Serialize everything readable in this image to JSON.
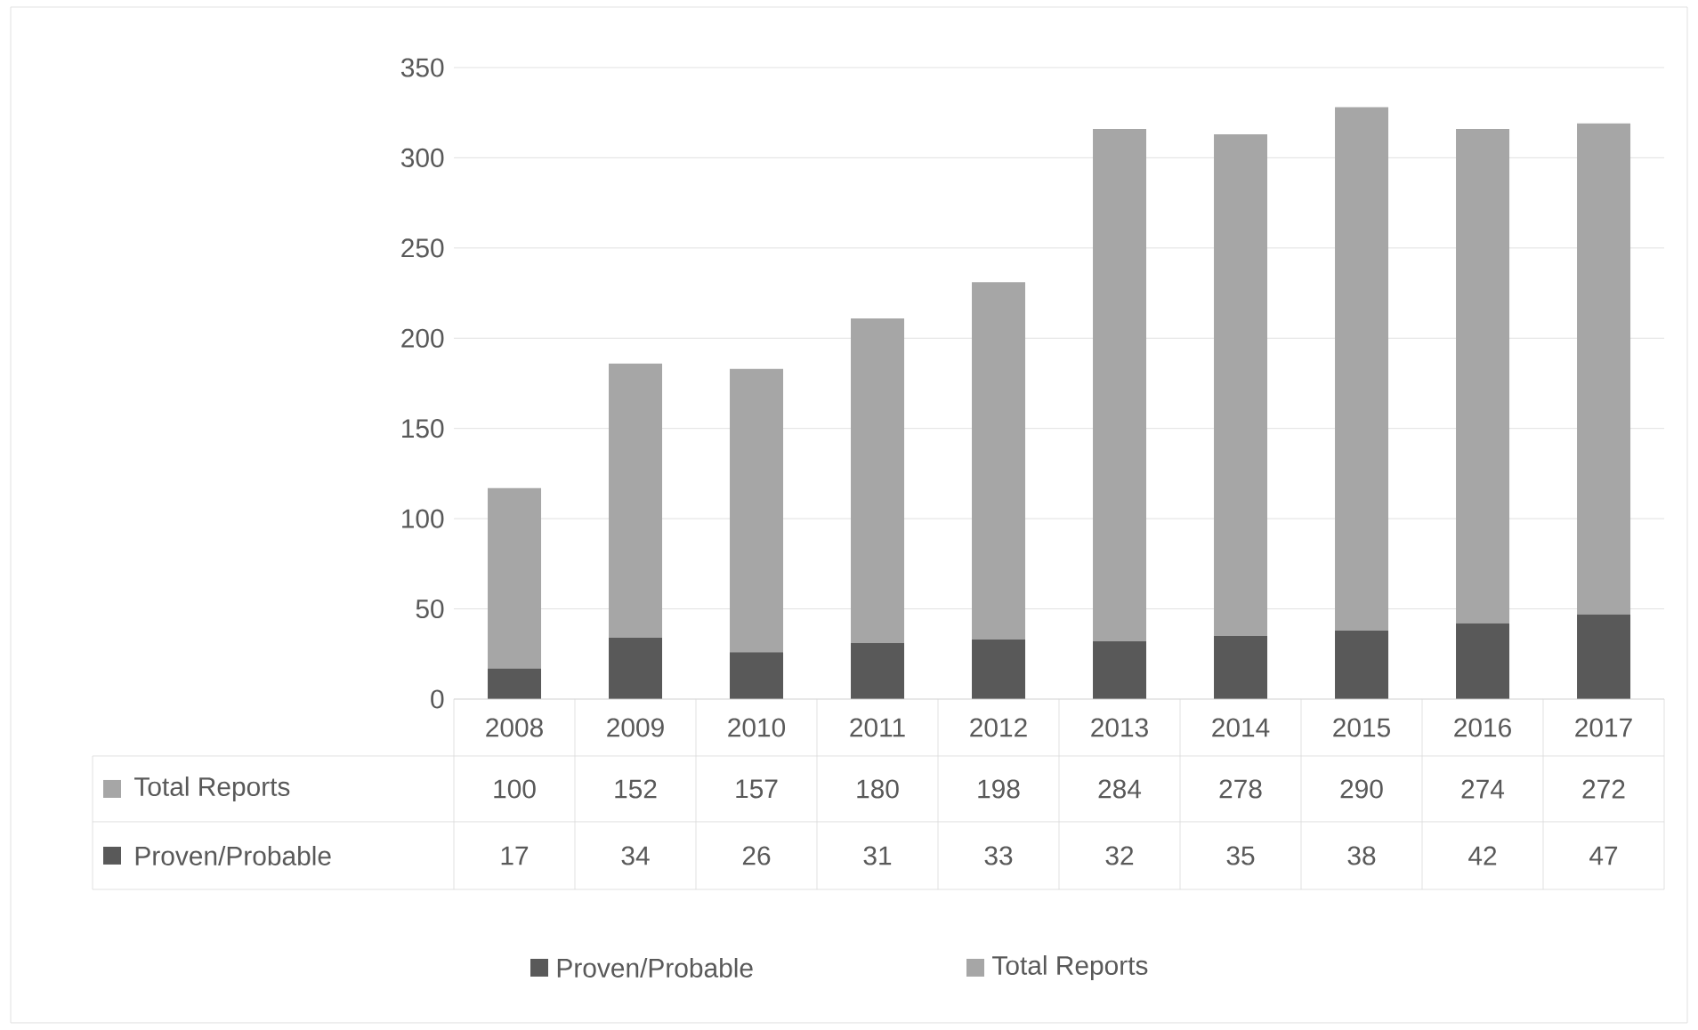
{
  "chart_data": {
    "type": "bar",
    "stacked": true,
    "categories": [
      "2008",
      "2009",
      "2010",
      "2011",
      "2012",
      "2013",
      "2014",
      "2015",
      "2016",
      "2017"
    ],
    "series": [
      {
        "name": "Proven/Probable",
        "color": "#595959",
        "values": [
          17,
          34,
          26,
          31,
          33,
          32,
          35,
          38,
          42,
          47
        ]
      },
      {
        "name": "Total Reports",
        "color": "#a6a6a6",
        "values": [
          100,
          152,
          157,
          180,
          198,
          284,
          278,
          290,
          274,
          272
        ]
      }
    ],
    "ylim": [
      0,
      350
    ],
    "yticks": [
      0,
      50,
      100,
      150,
      200,
      250,
      300,
      350
    ],
    "grid": "y",
    "legend": "bottom",
    "data_labels": true
  }
}
